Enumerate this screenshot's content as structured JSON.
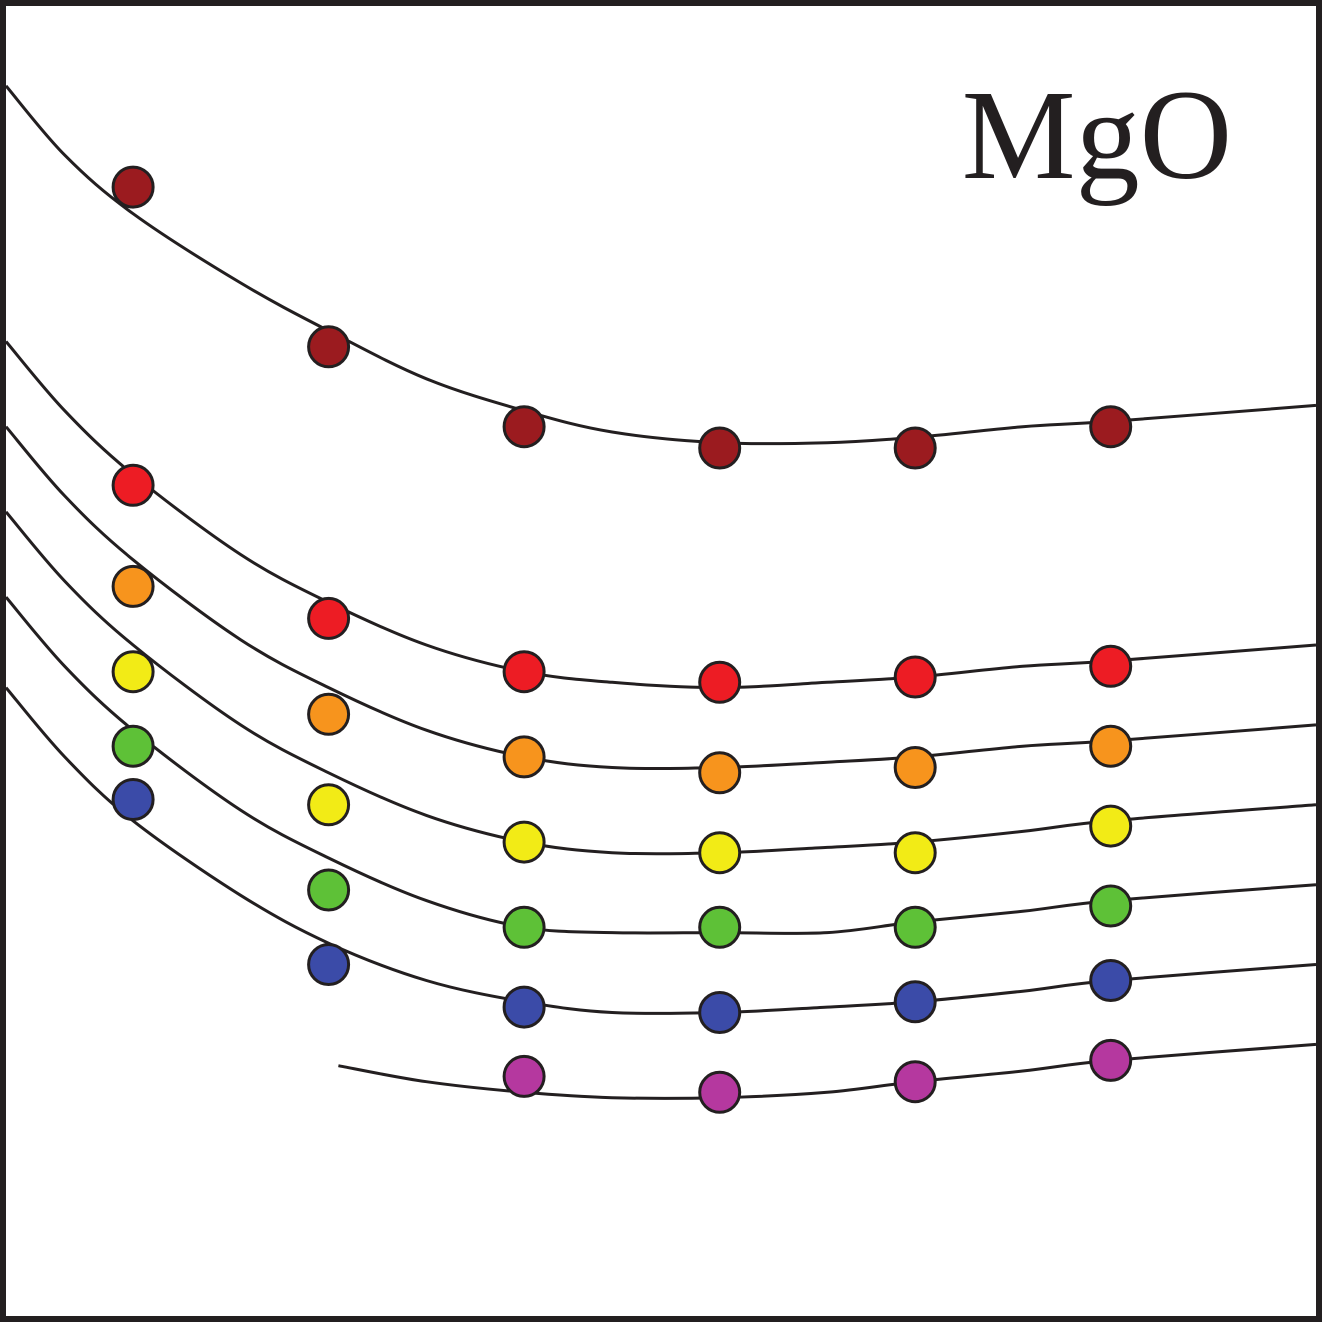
{
  "chart_data": {
    "type": "scatter",
    "title": "MgO",
    "xlim": [
      0,
      6.7
    ],
    "ylim": [
      0,
      12.3
    ],
    "grid": false,
    "series": [
      {
        "color": "#9b1b1f",
        "points": [
          [
            0.65,
            10.6
          ],
          [
            1.65,
            9.1
          ],
          [
            2.65,
            8.35
          ],
          [
            3.65,
            8.15
          ],
          [
            4.65,
            8.15
          ],
          [
            5.65,
            8.35
          ]
        ],
        "curve": [
          [
            0,
            11.55
          ],
          [
            0.3,
            10.9
          ],
          [
            0.65,
            10.35
          ],
          [
            1.2,
            9.7
          ],
          [
            1.65,
            9.25
          ],
          [
            2.15,
            8.8
          ],
          [
            2.65,
            8.5
          ],
          [
            3.1,
            8.3
          ],
          [
            3.65,
            8.2
          ],
          [
            4.2,
            8.2
          ],
          [
            4.65,
            8.25
          ],
          [
            5.2,
            8.35
          ],
          [
            5.65,
            8.4
          ],
          [
            6.7,
            8.55
          ]
        ]
      },
      {
        "color": "#ed1c24",
        "points": [
          [
            0.65,
            7.8
          ],
          [
            1.65,
            6.55
          ],
          [
            2.65,
            6.05
          ],
          [
            3.65,
            5.95
          ],
          [
            4.65,
            6.0
          ],
          [
            5.65,
            6.1
          ]
        ],
        "curve": [
          [
            0,
            9.15
          ],
          [
            0.3,
            8.5
          ],
          [
            0.65,
            7.9
          ],
          [
            1.2,
            7.15
          ],
          [
            1.65,
            6.7
          ],
          [
            2.15,
            6.3
          ],
          [
            2.65,
            6.05
          ],
          [
            3.1,
            5.95
          ],
          [
            3.65,
            5.9
          ],
          [
            4.2,
            5.95
          ],
          [
            4.65,
            6.0
          ],
          [
            5.2,
            6.1
          ],
          [
            5.65,
            6.15
          ],
          [
            6.7,
            6.3
          ]
        ]
      },
      {
        "color": "#f7941d",
        "points": [
          [
            0.65,
            6.85
          ],
          [
            1.65,
            5.65
          ],
          [
            2.65,
            5.25
          ],
          [
            3.65,
            5.1
          ],
          [
            4.65,
            5.15
          ],
          [
            5.65,
            5.35
          ]
        ],
        "curve": [
          [
            0,
            8.35
          ],
          [
            0.3,
            7.7
          ],
          [
            0.65,
            7.1
          ],
          [
            1.2,
            6.35
          ],
          [
            1.65,
            5.9
          ],
          [
            2.15,
            5.5
          ],
          [
            2.65,
            5.25
          ],
          [
            3.1,
            5.15
          ],
          [
            3.65,
            5.15
          ],
          [
            4.2,
            5.2
          ],
          [
            4.65,
            5.25
          ],
          [
            5.2,
            5.35
          ],
          [
            5.65,
            5.4
          ],
          [
            6.7,
            5.55
          ]
        ]
      },
      {
        "color": "#f2eb16",
        "points": [
          [
            0.65,
            6.05
          ],
          [
            1.65,
            4.8
          ],
          [
            2.65,
            4.45
          ],
          [
            3.65,
            4.35
          ],
          [
            4.65,
            4.35
          ],
          [
            5.65,
            4.6
          ]
        ],
        "curve": [
          [
            0,
            7.55
          ],
          [
            0.3,
            6.9
          ],
          [
            0.65,
            6.3
          ],
          [
            1.2,
            5.55
          ],
          [
            1.65,
            5.1
          ],
          [
            2.15,
            4.7
          ],
          [
            2.65,
            4.45
          ],
          [
            3.1,
            4.35
          ],
          [
            3.65,
            4.35
          ],
          [
            4.2,
            4.4
          ],
          [
            4.65,
            4.45
          ],
          [
            5.2,
            4.55
          ],
          [
            5.65,
            4.65
          ],
          [
            6.7,
            4.8
          ]
        ]
      },
      {
        "color": "#5ec137",
        "points": [
          [
            0.65,
            5.35
          ],
          [
            1.65,
            4.0
          ],
          [
            2.65,
            3.65
          ],
          [
            3.65,
            3.65
          ],
          [
            4.65,
            3.65
          ],
          [
            5.65,
            3.85
          ]
        ],
        "curve": [
          [
            0,
            6.75
          ],
          [
            0.3,
            6.1
          ],
          [
            0.65,
            5.5
          ],
          [
            1.2,
            4.75
          ],
          [
            1.65,
            4.3
          ],
          [
            2.15,
            3.9
          ],
          [
            2.65,
            3.65
          ],
          [
            3.1,
            3.6
          ],
          [
            3.65,
            3.6
          ],
          [
            4.2,
            3.6
          ],
          [
            4.65,
            3.7
          ],
          [
            5.2,
            3.8
          ],
          [
            5.65,
            3.9
          ],
          [
            6.7,
            4.05
          ]
        ]
      },
      {
        "color": "#3b4ba8",
        "points": [
          [
            0.65,
            4.85
          ],
          [
            1.65,
            3.3
          ],
          [
            2.65,
            2.9
          ],
          [
            3.65,
            2.85
          ],
          [
            4.65,
            2.95
          ],
          [
            5.65,
            3.15
          ]
        ],
        "curve": [
          [
            0,
            5.9
          ],
          [
            0.3,
            5.25
          ],
          [
            0.65,
            4.65
          ],
          [
            1.2,
            3.95
          ],
          [
            1.65,
            3.5
          ],
          [
            2.15,
            3.15
          ],
          [
            2.65,
            2.95
          ],
          [
            3.1,
            2.85
          ],
          [
            3.65,
            2.85
          ],
          [
            4.2,
            2.9
          ],
          [
            4.65,
            2.95
          ],
          [
            5.2,
            3.05
          ],
          [
            5.65,
            3.15
          ],
          [
            6.7,
            3.3
          ]
        ]
      },
      {
        "color": "#b5389f",
        "points": [
          [
            2.65,
            2.25
          ],
          [
            3.65,
            2.1
          ],
          [
            4.65,
            2.2
          ],
          [
            5.65,
            2.4
          ]
        ],
        "curve": [
          [
            1.7,
            2.35
          ],
          [
            2.15,
            2.2
          ],
          [
            2.65,
            2.1
          ],
          [
            3.1,
            2.05
          ],
          [
            3.65,
            2.05
          ],
          [
            4.2,
            2.1
          ],
          [
            4.65,
            2.2
          ],
          [
            5.2,
            2.3
          ],
          [
            5.65,
            2.4
          ],
          [
            6.7,
            2.55
          ]
        ]
      }
    ]
  }
}
